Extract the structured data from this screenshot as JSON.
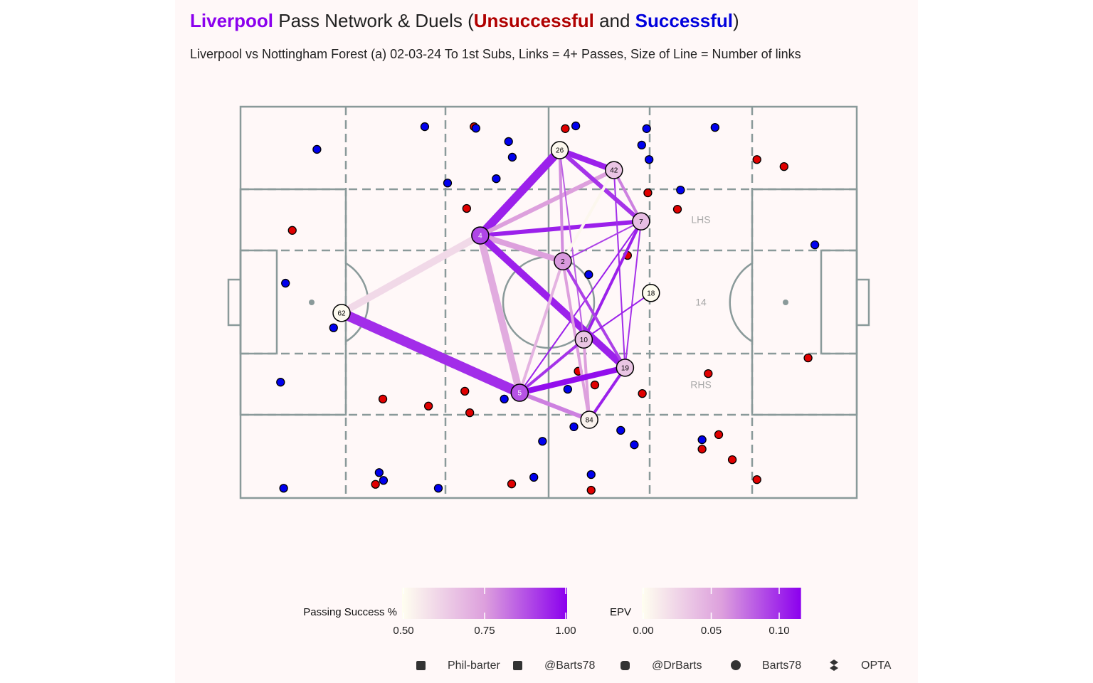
{
  "chart_data": {
    "type": "pass-network",
    "title": [
      {
        "text": "Liverpool",
        "color": "#8b00ee",
        "bold": true
      },
      {
        "text": " Pass Network & Duels (",
        "color": "#222222",
        "bold": false
      },
      {
        "text": "Unsuccessful",
        "color": "#b00000",
        "bold": true
      },
      {
        "text": " and ",
        "color": "#222222",
        "bold": false
      },
      {
        "text": "Successful",
        "color": "#0000dd",
        "bold": true
      },
      {
        "text": ")",
        "color": "#222222",
        "bold": false
      }
    ],
    "subtitle": "Liverpool vs Nottingham Forest (a) 02-03-24 To 1st Subs, Links = 4+ Passes, Size of Line = Number of links",
    "xlim": [
      0,
      100
    ],
    "ylim": [
      0,
      100
    ],
    "zone_labels": [
      "LHS",
      "14",
      "RHS"
    ],
    "duels": [
      {
        "color": "#e00000",
        "x": [
          37.9,
          52.7,
          83.8,
          88.2,
          66.1,
          70.9,
          36.7,
          8.4,
          62.8,
          92.1,
          75.9,
          65.2,
          57.5,
          54.8,
          36.4,
          23.1,
          30.5,
          37.2,
          77.6,
          74.9,
          79.8,
          83.8,
          56.9,
          44.0,
          21.9
        ],
        "y": [
          5.1,
          5.6,
          13.5,
          15.3,
          22.0,
          26.2,
          26.0,
          31.6,
          38.0,
          64.2,
          68.2,
          73.3,
          71.1,
          67.6,
          72.7,
          74.7,
          76.5,
          78.2,
          83.8,
          87.5,
          90.2,
          95.3,
          98.0,
          96.4,
          96.5
        ]
      },
      {
        "color": "#0000ee",
        "x": [
          29.9,
          38.2,
          12.4,
          43.5,
          44.1,
          41.5,
          33.6,
          54.4,
          65.9,
          77.0,
          65.1,
          66.3,
          71.4,
          93.2,
          7.3,
          15.1,
          6.5,
          56.5,
          42.8,
          53.1,
          54.1,
          49.0,
          61.7,
          63.9,
          74.9,
          56.9,
          47.6,
          32.1,
          22.5,
          23.2,
          7.0
        ],
        "y": [
          5.1,
          5.5,
          10.9,
          8.9,
          12.9,
          18.4,
          19.5,
          4.9,
          5.6,
          5.3,
          9.8,
          13.5,
          21.3,
          35.3,
          45.1,
          56.5,
          70.4,
          42.9,
          74.7,
          72.2,
          81.8,
          85.5,
          82.7,
          86.4,
          85.1,
          94.0,
          94.7,
          97.5,
          93.5,
          95.5,
          97.5
        ]
      }
    ],
    "nodes": [
      {
        "player": 26,
        "x": 51.8,
        "y": 11.1,
        "epv": 0.005
      },
      {
        "player": 42,
        "x": 60.6,
        "y": 16.2,
        "epv": 0.035
      },
      {
        "player": 7,
        "x": 65.0,
        "y": 29.3,
        "epv": 0.04
      },
      {
        "player": 4,
        "x": 38.9,
        "y": 32.9,
        "epv": 0.09
      },
      {
        "player": 2,
        "x": 52.3,
        "y": 39.5,
        "epv": 0.06
      },
      {
        "player": 18,
        "x": 66.6,
        "y": 47.6,
        "epv": 0.002
      },
      {
        "player": 62,
        "x": 16.4,
        "y": 52.7,
        "epv": 0.003
      },
      {
        "player": 10,
        "x": 55.7,
        "y": 59.5,
        "epv": 0.035
      },
      {
        "player": 19,
        "x": 62.4,
        "y": 66.7,
        "epv": 0.035
      },
      {
        "player": 5,
        "x": 45.3,
        "y": 73.1,
        "epv": 0.085
      },
      {
        "player": 84,
        "x": 56.6,
        "y": 80.0,
        "epv": 0.008
      }
    ],
    "links": [
      {
        "from": 62,
        "to": 4,
        "passes": 8,
        "success": 0.6
      },
      {
        "from": 62,
        "to": 5,
        "passes": 10,
        "success": 0.93
      },
      {
        "from": 4,
        "to": 26,
        "passes": 9,
        "success": 0.95
      },
      {
        "from": 4,
        "to": 7,
        "passes": 6,
        "success": 0.95
      },
      {
        "from": 4,
        "to": 42,
        "passes": 6,
        "success": 0.75
      },
      {
        "from": 4,
        "to": 2,
        "passes": 7,
        "success": 0.75
      },
      {
        "from": 4,
        "to": 5,
        "passes": 8,
        "success": 0.72
      },
      {
        "from": 4,
        "to": 19,
        "passes": 8,
        "success": 0.95
      },
      {
        "from": 26,
        "to": 42,
        "passes": 7,
        "success": 0.95
      },
      {
        "from": 26,
        "to": 7,
        "passes": 6,
        "success": 0.92
      },
      {
        "from": 26,
        "to": 2,
        "passes": 5,
        "success": 0.78
      },
      {
        "from": 26,
        "to": 10,
        "passes": 4,
        "success": 0.85
      },
      {
        "from": 42,
        "to": 7,
        "passes": 5,
        "success": 0.8
      },
      {
        "from": 42,
        "to": 2,
        "passes": 5,
        "success": 0.52
      },
      {
        "from": 42,
        "to": 19,
        "passes": 4,
        "success": 0.93
      },
      {
        "from": 7,
        "to": 2,
        "passes": 4,
        "success": 0.9
      },
      {
        "from": 7,
        "to": 10,
        "passes": 5,
        "success": 0.95
      },
      {
        "from": 7,
        "to": 5,
        "passes": 4,
        "success": 0.95
      },
      {
        "from": 7,
        "to": 19,
        "passes": 4,
        "success": 0.92
      },
      {
        "from": 2,
        "to": 84,
        "passes": 5,
        "success": 0.75
      },
      {
        "from": 2,
        "to": 5,
        "passes": 5,
        "success": 0.7
      },
      {
        "from": 2,
        "to": 19,
        "passes": 5,
        "success": 0.9
      },
      {
        "from": 18,
        "to": 10,
        "passes": 4,
        "success": 0.95
      },
      {
        "from": 10,
        "to": 5,
        "passes": 5,
        "success": 0.92
      },
      {
        "from": 10,
        "to": 84,
        "passes": 5,
        "success": 0.75
      },
      {
        "from": 5,
        "to": 19,
        "passes": 7,
        "success": 0.98
      },
      {
        "from": 5,
        "to": 84,
        "passes": 6,
        "success": 0.8
      },
      {
        "from": 19,
        "to": 84,
        "passes": 5,
        "success": 0.95
      }
    ],
    "colors": [
      "#fffff0",
      "#dda0dd",
      "#8b00ee"
    ],
    "legends": [
      {
        "title": "Passing Success %",
        "lim": [
          0.5,
          1.0
        ],
        "ticks": [
          {
            "value": 0.5,
            "label": "0.50"
          },
          {
            "value": 0.75,
            "label": "0.75"
          },
          {
            "value": 1.0,
            "label": "1.00"
          }
        ]
      },
      {
        "title": "EPV",
        "lim": [
          0,
          0.115
        ],
        "ticks": [
          {
            "value": 0,
            "label": "0.00"
          },
          {
            "value": 0.05,
            "label": "0.05"
          },
          {
            "value": 0.1,
            "label": "0.10"
          }
        ]
      }
    ],
    "footer": [
      "Phil-barter",
      "@Barts78",
      "@DrBarts",
      "Barts78",
      "OPTA"
    ]
  }
}
